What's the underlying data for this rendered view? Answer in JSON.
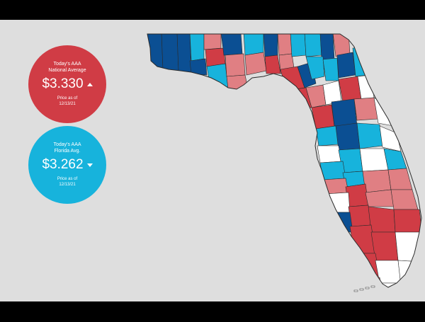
{
  "national": {
    "line1": "Today's AAA",
    "line2": "National Average",
    "price": "$3.330",
    "trend": "up",
    "as_of_label": "Price as of",
    "as_of_date": "12/13/21",
    "color": "#d03c45"
  },
  "florida": {
    "line1": "Today's AAA",
    "line2": "Florida Avg.",
    "price": "$3.262",
    "trend": "down",
    "as_of_label": "Price as of",
    "as_of_date": "12/13/21",
    "color": "#17b3dc"
  },
  "map": {
    "background": "#dedede",
    "outline_color": "#2b2b2b",
    "price_category_colors": [
      "#0b4f93",
      "#17b3dc",
      "#e07f83",
      "#d03c45",
      "#ffffff"
    ],
    "county_count_shown": 67
  }
}
